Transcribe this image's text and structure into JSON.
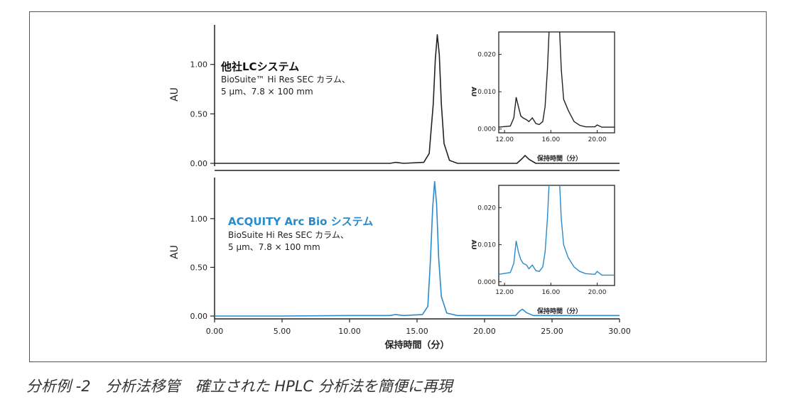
{
  "caption": "分析例 -2　分析法移管　確立された HPLC 分析法を簡便に再現",
  "colors": {
    "other_trace": "#222222",
    "arc_trace": "#2b8acb",
    "axis": "#222222"
  },
  "chart_data": [
    {
      "type": "line",
      "title": "他社LCシステム",
      "subtitle": [
        "BioSuite™ Hi Res SEC カラム、",
        "5 µm、7.8 × 100 mm"
      ],
      "xlabel": "保持時間（分）",
      "ylabel": "AU",
      "xlim": [
        0,
        30
      ],
      "ylim": [
        0,
        1.4
      ],
      "yticks": [
        "0.00",
        "0.50",
        "1.00"
      ],
      "series": [
        {
          "x": [
            0,
            5,
            10,
            13.0,
            13.4,
            14.0,
            15.5,
            15.9,
            16.2,
            16.35,
            16.5,
            16.65,
            16.8,
            17.0,
            17.4,
            18,
            22.4,
            22.8,
            23.0,
            23.3,
            23.8,
            25,
            30
          ],
          "values": [
            0,
            0,
            0,
            0,
            0.01,
            0,
            0.01,
            0.1,
            0.6,
            1.05,
            1.3,
            1.1,
            0.6,
            0.2,
            0.03,
            0,
            0,
            0.05,
            0.08,
            0.04,
            0,
            0,
            0
          ]
        }
      ],
      "inset": {
        "xlabel": "保持時間（分）",
        "ylabel": "AU",
        "xticks": [
          "12.00",
          "16.00",
          "20.00"
        ],
        "yticks": [
          "0.000",
          "0.010",
          "0.020"
        ],
        "xlim": [
          11.5,
          21.5
        ],
        "ylim": [
          -0.001,
          0.026
        ],
        "x": [
          11.5,
          12.5,
          12.8,
          13.0,
          13.2,
          13.4,
          13.6,
          13.9,
          14.1,
          14.4,
          14.7,
          15.0,
          15.3,
          15.5,
          15.7,
          15.9,
          16.7,
          16.9,
          17.1,
          17.5,
          18.0,
          18.5,
          19.0,
          19.8,
          20.0,
          20.4,
          21.5
        ],
        "values": [
          0.0005,
          0.0008,
          0.003,
          0.0085,
          0.006,
          0.0035,
          0.003,
          0.0025,
          0.002,
          0.003,
          0.0015,
          0.0012,
          0.002,
          0.006,
          0.016,
          0.03,
          0.03,
          0.016,
          0.008,
          0.005,
          0.002,
          0.001,
          0.0006,
          0.0006,
          0.0011,
          0.0005,
          0.0005
        ]
      }
    },
    {
      "type": "line",
      "title": "ACQUITY Arc Bio システム",
      "subtitle": [
        "BioSuite Hi Res SEC カラム、",
        "5 µm、7.8 × 100 mm"
      ],
      "xlabel": "保持時間（分）",
      "ylabel": "AU",
      "xlim": [
        0,
        30
      ],
      "ylim": [
        0,
        1.4
      ],
      "xticks": [
        "0.00",
        "5.00",
        "10.00",
        "15.00",
        "20.00",
        "25.00",
        "30.00"
      ],
      "yticks": [
        "0.00",
        "0.50",
        "1.00"
      ],
      "series": [
        {
          "x": [
            0,
            5,
            10,
            13.0,
            13.4,
            14.0,
            15.4,
            15.8,
            16.0,
            16.15,
            16.3,
            16.45,
            16.6,
            16.8,
            17.2,
            18,
            22.3,
            22.6,
            22.8,
            23.1,
            23.6,
            25,
            30
          ],
          "values": [
            0,
            0,
            0.005,
            0.005,
            0.015,
            0.005,
            0.015,
            0.1,
            0.6,
            1.1,
            1.38,
            1.15,
            0.6,
            0.2,
            0.03,
            0.005,
            0.005,
            0.05,
            0.07,
            0.035,
            0.005,
            0.005,
            0.005
          ]
        }
      ],
      "inset": {
        "xlabel": "保持時間（分）",
        "ylabel": "AU",
        "xticks": [
          "12.00",
          "16.00",
          "20.00"
        ],
        "yticks": [
          "0.000",
          "0.010",
          "0.020"
        ],
        "xlim": [
          11.5,
          21.5
        ],
        "ylim": [
          -0.001,
          0.026
        ],
        "x": [
          11.5,
          12.5,
          12.8,
          13.0,
          13.2,
          13.4,
          13.6,
          13.9,
          14.1,
          14.4,
          14.7,
          15.0,
          15.3,
          15.5,
          15.7,
          15.9,
          16.7,
          16.9,
          17.1,
          17.5,
          18.0,
          18.5,
          19.0,
          19.8,
          20.0,
          20.4,
          21.5
        ],
        "values": [
          0.002,
          0.0025,
          0.005,
          0.011,
          0.008,
          0.006,
          0.005,
          0.0045,
          0.0035,
          0.0045,
          0.003,
          0.0028,
          0.004,
          0.008,
          0.017,
          0.03,
          0.03,
          0.017,
          0.01,
          0.0065,
          0.004,
          0.0028,
          0.0022,
          0.002,
          0.0028,
          0.0018,
          0.0018
        ]
      }
    }
  ]
}
